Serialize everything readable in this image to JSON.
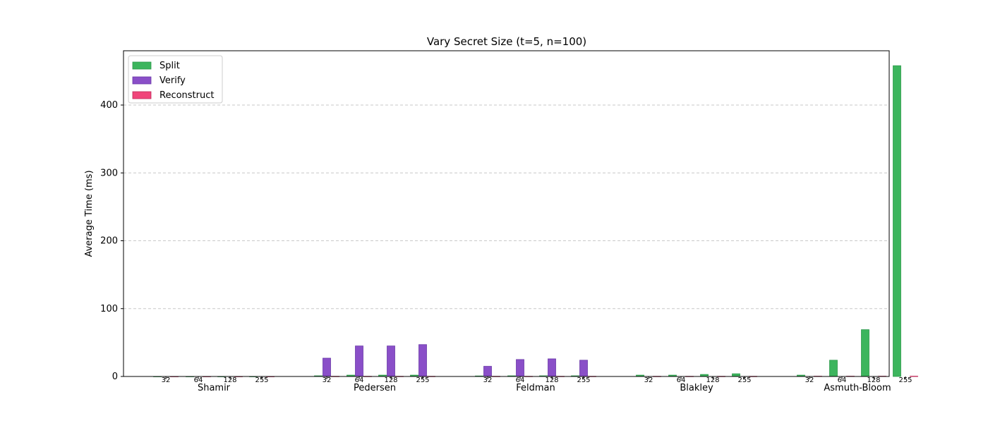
{
  "chart_data": {
    "type": "bar",
    "title": "Vary Secret Size (t=5, n=100)",
    "xlabel": "",
    "ylabel": "Average Time (ms)",
    "ylim": [
      0,
      480
    ],
    "yticks": [
      0,
      100,
      200,
      300,
      400
    ],
    "grid": "y-dashed",
    "legend_position": "top-left",
    "groups": [
      "Shamir",
      "Pedersen",
      "Feldman",
      "Blakley",
      "Asmuth-Bloom"
    ],
    "subcategories": [
      "32",
      "64",
      "128",
      "255"
    ],
    "series": [
      {
        "name": "Split",
        "color": "#3cb55d",
        "edge": "#2e9a4c",
        "values": [
          [
            0.1,
            0.1,
            0.1,
            0.1
          ],
          [
            1.0,
            2.0,
            2.0,
            2.0
          ],
          [
            0.8,
            1.0,
            1.0,
            1.0
          ],
          [
            2.0,
            2.0,
            3.0,
            4.0
          ],
          [
            2.0,
            24.0,
            69.0,
            458.0
          ]
        ]
      },
      {
        "name": "Verify",
        "color": "#8a4fc8",
        "edge": "#6a3aa8",
        "values": [
          [
            0,
            0,
            0,
            0
          ],
          [
            27.0,
            45.0,
            45.0,
            47.0
          ],
          [
            15.0,
            25.0,
            26.0,
            24.0
          ],
          [
            0,
            0,
            0,
            0
          ],
          [
            0,
            0,
            0,
            0
          ]
        ]
      },
      {
        "name": "Reconstruct",
        "color": "#f0457a",
        "edge": "#c02b5a",
        "values": [
          [
            0.1,
            0.1,
            0.1,
            0.1
          ],
          [
            0.3,
            0.3,
            0.3,
            0.3
          ],
          [
            0.3,
            0.3,
            0.3,
            0.3
          ],
          [
            0.3,
            0.3,
            0.3,
            0.3
          ],
          [
            0.5,
            0.5,
            0.5,
            0.5
          ]
        ]
      }
    ]
  }
}
